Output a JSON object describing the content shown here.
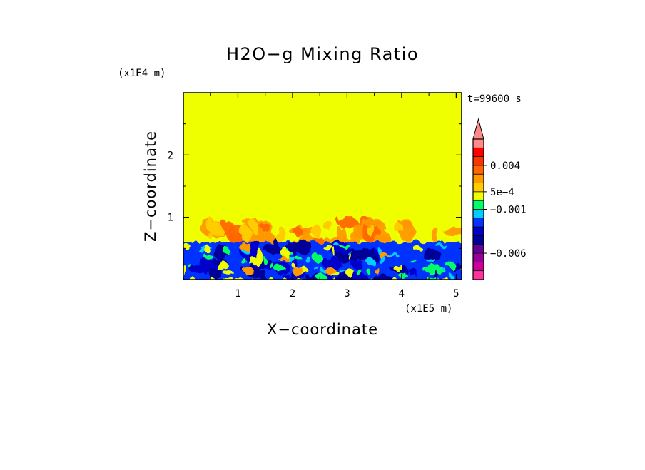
{
  "chart_data": {
    "type": "heatmap",
    "title": "H2O−g Mixing Ratio",
    "xlabel": "X−coordinate",
    "ylabel": "Z−coordinate",
    "x_unit": "(x1E5 m)",
    "y_unit": "(x1E4 m)",
    "time_label": "t=99600 s",
    "xlim": [
      0,
      5.1
    ],
    "ylim": [
      0,
      3.0
    ],
    "x_ticks": [
      {
        "value": 1,
        "label": "1"
      },
      {
        "value": 2,
        "label": "2"
      },
      {
        "value": 3,
        "label": "3"
      },
      {
        "value": 4,
        "label": "4"
      },
      {
        "value": 5,
        "label": "5"
      }
    ],
    "y_ticks": [
      {
        "value": 1,
        "label": "1"
      },
      {
        "value": 2,
        "label": "2"
      }
    ],
    "colorbar": {
      "extend": "max",
      "levels": [
        {
          "color": "#ff3399"
        },
        {
          "color": "#cc0099"
        },
        {
          "color": "#990099"
        },
        {
          "color": "#660099"
        },
        {
          "color": "#000099"
        },
        {
          "color": "#0000cc"
        },
        {
          "color": "#0033ff"
        },
        {
          "color": "#00ccff"
        },
        {
          "color": "#00ff66"
        },
        {
          "color": "#f0ff00"
        },
        {
          "color": "#ffcc00"
        },
        {
          "color": "#ff9900"
        },
        {
          "color": "#ff6600"
        },
        {
          "color": "#ff3300"
        },
        {
          "color": "#ff0000"
        },
        {
          "color": "#ff8888"
        }
      ],
      "tick_labels": [
        {
          "label": "−0.006",
          "boundary": 3
        },
        {
          "label": "−0.001",
          "boundary": 8
        },
        {
          "label": "5e−4",
          "boundary": 10
        },
        {
          "label": "0.004",
          "boundary": 13
        }
      ]
    }
  }
}
